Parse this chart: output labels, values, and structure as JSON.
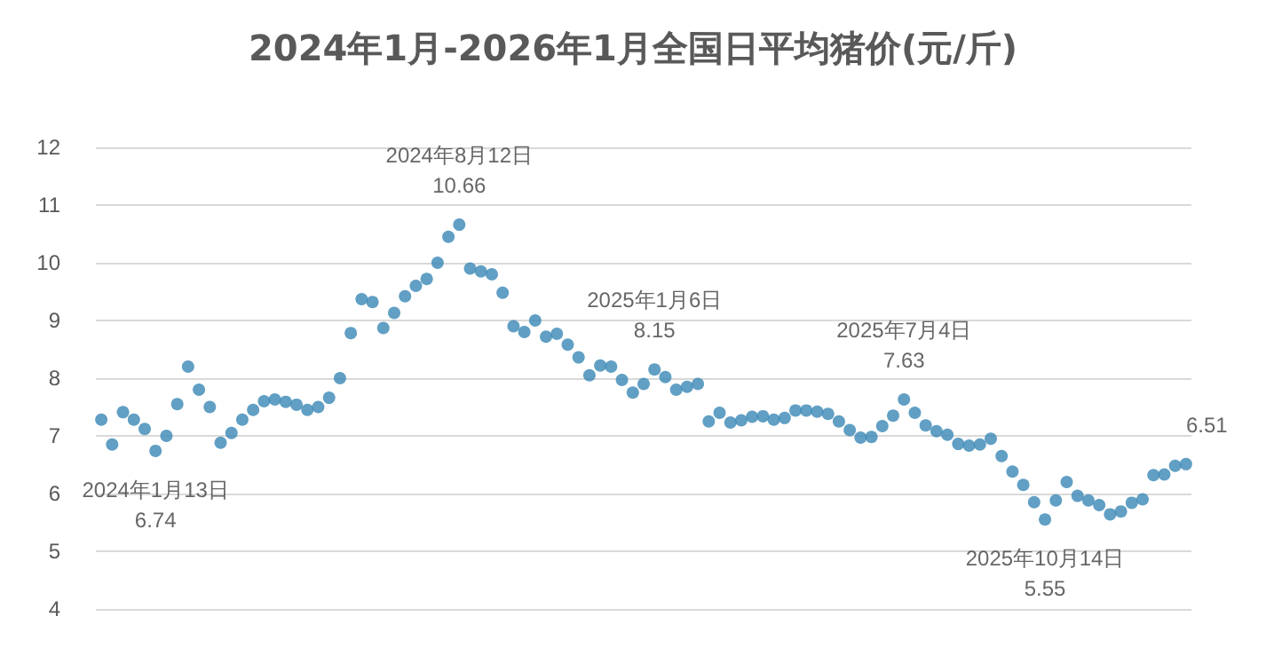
{
  "chart_data": {
    "type": "scatter",
    "title": "2024年1月-2026年1月全国日平均猪价(元/斤)",
    "categories": [
      null,
      null,
      null,
      null,
      null,
      null,
      null,
      null,
      null,
      null,
      null,
      null,
      null,
      null,
      null,
      null,
      null,
      null,
      null,
      null,
      null,
      null,
      null,
      null,
      null,
      null,
      null,
      null,
      null,
      null,
      null,
      null,
      null,
      null,
      null,
      null,
      null,
      null,
      null,
      null,
      null,
      null,
      null,
      null,
      null,
      null,
      null,
      null,
      null,
      null,
      null,
      null,
      null,
      null,
      null,
      null,
      null,
      null,
      null,
      null,
      null,
      null,
      null,
      null,
      null,
      null,
      null,
      null,
      null,
      null,
      null,
      null,
      null,
      null,
      null,
      null,
      null,
      null,
      null,
      null,
      null,
      null,
      null,
      null,
      null,
      null,
      null,
      null,
      null,
      null,
      null,
      null,
      null,
      null,
      null,
      null,
      null,
      null,
      null,
      null,
      null
    ],
    "series": [
      {
        "color": "#3a87b5",
        "values": [
          7.28,
          6.85,
          7.41,
          7.28,
          7.12,
          6.74,
          7.0,
          7.55,
          8.2,
          7.8,
          7.5,
          6.88,
          7.05,
          7.28,
          7.45,
          7.6,
          7.63,
          7.59,
          7.54,
          7.45,
          7.5,
          7.66,
          8.0,
          8.78,
          9.37,
          9.32,
          8.87,
          9.13,
          9.42,
          9.6,
          9.72,
          10.0,
          10.45,
          10.66,
          9.9,
          9.85,
          9.8,
          9.48,
          8.9,
          8.8,
          9.0,
          8.72,
          8.77,
          8.58,
          8.36,
          8.05,
          8.22,
          8.2,
          7.97,
          7.75,
          7.9,
          8.15,
          8.02,
          7.8,
          7.85,
          7.9,
          7.25,
          7.4,
          7.23,
          7.27,
          7.33,
          7.34,
          7.28,
          7.31,
          7.44,
          7.44,
          7.42,
          7.38,
          7.25,
          7.1,
          6.97,
          6.98,
          7.17,
          7.35,
          7.63,
          7.4,
          7.18,
          7.08,
          7.02,
          6.86,
          6.83,
          6.85,
          6.95,
          6.65,
          6.38,
          6.15,
          5.85,
          5.55,
          5.88,
          6.2,
          5.96,
          5.88,
          5.8,
          5.64,
          5.69,
          5.84,
          5.9,
          6.32,
          6.33,
          6.48,
          6.51
        ],
        "value_labels": [
          null,
          null,
          null,
          null,
          null,
          "2024年1月13日\n6.74",
          null,
          null,
          null,
          null,
          null,
          null,
          null,
          null,
          null,
          null,
          null,
          null,
          null,
          null,
          null,
          null,
          null,
          null,
          null,
          null,
          null,
          null,
          null,
          null,
          null,
          null,
          null,
          "2024年8月12日\n10.66",
          null,
          null,
          null,
          null,
          null,
          null,
          null,
          null,
          null,
          null,
          null,
          null,
          null,
          null,
          null,
          null,
          null,
          "2025年1月6日\n8.15",
          null,
          null,
          null,
          null,
          null,
          null,
          null,
          null,
          null,
          null,
          null,
          null,
          null,
          null,
          null,
          null,
          null,
          null,
          null,
          null,
          null,
          null,
          "2025年7月4日\n7.63",
          null,
          null,
          null,
          null,
          null,
          null,
          null,
          null,
          null,
          null,
          null,
          null,
          "2025年10月14日\n5.55",
          null,
          null,
          null,
          null,
          null,
          null,
          null,
          null,
          null,
          null,
          null,
          null,
          "6.51"
        ]
      }
    ],
    "ylim": [
      4,
      12
    ],
    "yticks": [
      4,
      5,
      6,
      7,
      8,
      9,
      10,
      11,
      12
    ],
    "grid": "y",
    "marker": "circle",
    "tick_labels": "y"
  }
}
